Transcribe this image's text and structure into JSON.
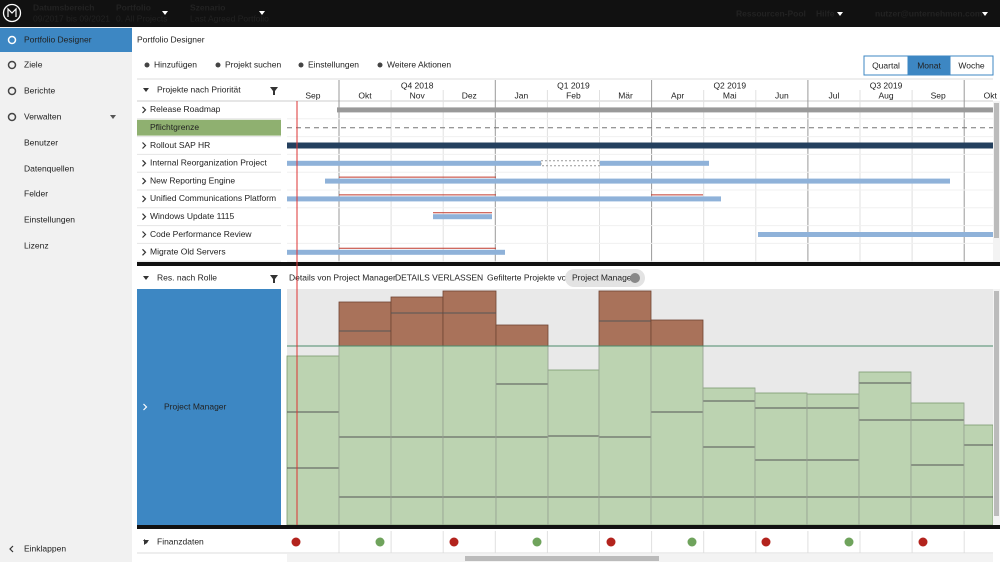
{
  "header": {
    "date_range_label": "Datumsbereich",
    "date_range": "09/2017 bis 09/2021",
    "portfolio_label": "Portfolio",
    "portfolio": "0. All Projects",
    "scenario_label": "Szenario",
    "scenario": "Last Agreed Portfolio",
    "resource_pool": "Ressourcen-Pool",
    "help": "Hilfe",
    "user": "nutzer@unternehmen.com"
  },
  "sidebar": {
    "items": [
      "Portfolio Designer",
      "Ziele",
      "Berichte",
      "Verwalten",
      "Benutzer",
      "Datenquellen",
      "Felder",
      "Einstellungen",
      "Lizenz"
    ],
    "collapse": "Einklappen"
  },
  "page": {
    "title": "Portfolio Designer",
    "toolbar": [
      "Hinzufügen",
      "Projekt suchen",
      "Einstellungen",
      "Weitere Aktionen"
    ],
    "views": [
      "Quartal",
      "Monat",
      "Woche"
    ]
  },
  "gantt": {
    "header": "Projekte nach Priorität",
    "quarters": [
      "Q4 2018",
      "Q1 2019",
      "Q2 2019",
      "Q3 2019"
    ],
    "months": [
      "Sep",
      "Okt",
      "Nov",
      "Dez",
      "Jan",
      "Feb",
      "Mär",
      "Apr",
      "Mai",
      "Jun",
      "Jul",
      "Aug",
      "Sep",
      "Okt"
    ],
    "rows": [
      "Release Roadmap",
      "Pflichtgrenze",
      "Rollout SAP HR",
      "Internal Reorganization Project",
      "New Reporting Engine",
      "Unified Communications Platform",
      "Windows Update 1115",
      "Code Performance Review",
      "Migrate Old Servers"
    ]
  },
  "resources": {
    "header": "Res. nach Rolle",
    "details": "Details von Project Manager",
    "exit": "DETAILS VERLASSEN",
    "filtered": "Gefilterte Projekte von",
    "chip": "Project Manager",
    "role": "Project Manager"
  },
  "finance": {
    "label": "Finanzdaten"
  }
}
